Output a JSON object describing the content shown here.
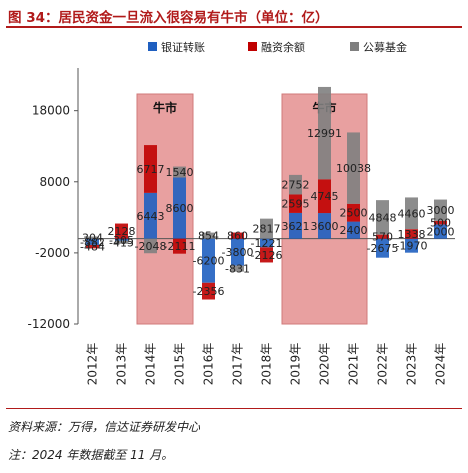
{
  "title": "图 34：居民资金一旦流入很容易有牛市（单位：亿）",
  "source": "资料来源：万得，信达证券研发中心",
  "footnote": "注：2024 年数据截至 11 月。",
  "colors": {
    "bank": "#1f5fc0",
    "margin": "#c00000",
    "fund": "#7f7f7f",
    "bull": "#e8a0a0",
    "title": "#b11a1a"
  },
  "chart_data": {
    "type": "bar",
    "stacked": true,
    "categories": [
      "2012年",
      "2013年",
      "2014年",
      "2015年",
      "2016年",
      "2017年",
      "2018年",
      "2019年",
      "2020年",
      "2021年",
      "2022年",
      "2023年",
      "2024年"
    ],
    "series": [
      {
        "name": "银证转账",
        "values": [
          -882,
          -305,
          6443,
          8600,
          -6200,
          -3800,
          -1221,
          3621,
          3600,
          2400,
          -2675,
          -1970,
          2000
        ]
      },
      {
        "name": "融资余额",
        "values": [
          -484,
          2128,
          6717,
          -2111,
          -2356,
          860,
          -2126,
          2595,
          4745,
          2500,
          570,
          1338,
          500
        ]
      },
      {
        "name": "公募基金",
        "values": [
          304,
          -415,
          -2048,
          1540,
          854,
          -831,
          2817,
          2752,
          12991,
          10038,
          4848,
          4460,
          3000
        ]
      }
    ],
    "labels": [
      [
        "-882",
        "-484",
        "304"
      ],
      [
        "-305",
        "2128",
        "-415"
      ],
      [
        "6443",
        "6717",
        "-2048"
      ],
      [
        "8600",
        "-2111",
        "1540"
      ],
      [
        "-6200",
        "-2356",
        "854"
      ],
      [
        "-3800",
        "860",
        "-831"
      ],
      [
        "-1221",
        "-2126",
        "2817"
      ],
      [
        "3621",
        "2595",
        "2752"
      ],
      [
        "3600",
        "4745",
        "12991"
      ],
      [
        "2400",
        "2500",
        "10038"
      ],
      [
        "-2675",
        "570",
        "4848"
      ],
      [
        "-1970",
        "1338",
        "4460"
      ],
      [
        "2000",
        "500",
        "3000"
      ]
    ],
    "ylim": [
      -12000,
      24000
    ],
    "yticks": [
      "18000",
      "8000",
      "-2000",
      "-12000"
    ],
    "ytick_values": [
      18000,
      8000,
      -2000,
      -12000
    ],
    "legend_position": "top-center",
    "bull_markets": [
      {
        "label": "牛市",
        "from": "2014年",
        "to": "2015年"
      },
      {
        "label": "牛市",
        "from": "2019年",
        "to": "2021年"
      }
    ]
  }
}
